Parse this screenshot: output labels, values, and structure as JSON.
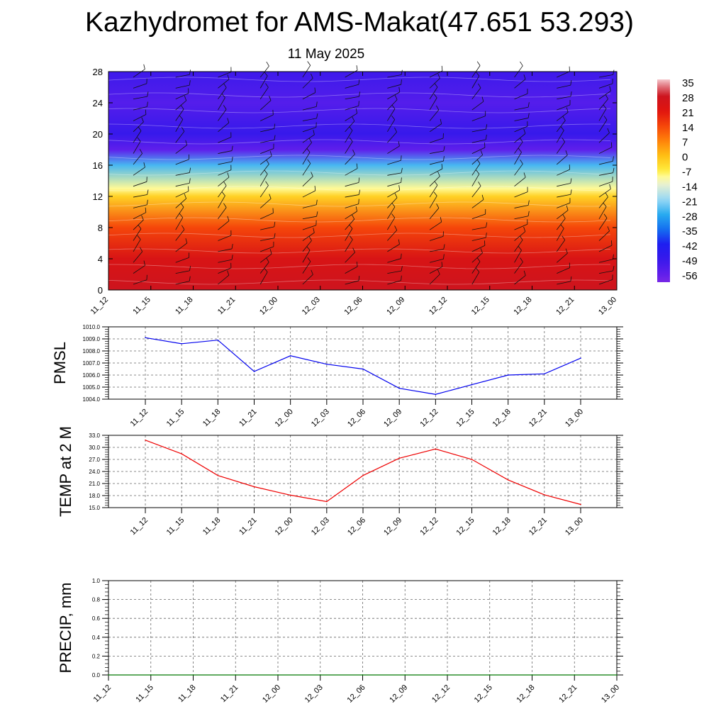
{
  "header": {
    "title": "Kazhydromet for AMS-Makat(47.651 53.293)",
    "date": "11 May 2025"
  },
  "colors": {
    "pmsl_line": "#0000ee",
    "temp_line": "#ee0000",
    "precip_line": "#007700",
    "grid": "#555555"
  },
  "chart_data": [
    {
      "type": "heatmap",
      "name": "cross-section",
      "x_ticks": [
        "11_12",
        "11_15",
        "11_18",
        "11_21",
        "12_00",
        "12_03",
        "12_06",
        "12_09",
        "12_12",
        "12_15",
        "12_18",
        "12_21",
        "13_00"
      ],
      "y_ticks": [
        0,
        4,
        8,
        12,
        16,
        20,
        24,
        28
      ],
      "ylim": [
        0,
        28
      ],
      "legend_position": "right",
      "colorbar_ticks": [
        "35",
        "28",
        "21",
        "14",
        "7",
        "0",
        "-7",
        "-14",
        "-21",
        "-28",
        "-35",
        "-42",
        "-49",
        "-56"
      ],
      "level_profile": [
        {
          "y": 0,
          "value": 28
        },
        {
          "y": 4,
          "value": 24
        },
        {
          "y": 8,
          "value": 14
        },
        {
          "y": 12,
          "value": -3
        },
        {
          "y": 13,
          "value": -10
        },
        {
          "y": 16,
          "value": -26
        },
        {
          "y": 18,
          "value": -56
        },
        {
          "y": 20,
          "value": -49
        },
        {
          "y": 24,
          "value": -54
        },
        {
          "y": 28,
          "value": -50
        }
      ],
      "wind_barbs": true
    },
    {
      "type": "line",
      "ylabel": "PMSL",
      "ylim": [
        1004.0,
        1010.0
      ],
      "y_ticks": [
        "1004.0",
        "1005.0",
        "1006.0",
        "1007.0",
        "1008.0",
        "1009.0",
        "1010.0"
      ],
      "categories": [
        "11_12",
        "11_15",
        "11_18",
        "11_21",
        "12_00",
        "12_03",
        "12_06",
        "12_09",
        "12_12",
        "12_15",
        "12_18",
        "12_21",
        "13_00"
      ],
      "values": [
        1009.1,
        1008.6,
        1008.9,
        1006.3,
        1007.6,
        1006.9,
        1006.5,
        1004.9,
        1004.4,
        1005.2,
        1006.0,
        1006.1,
        1007.4
      ],
      "grid": true
    },
    {
      "type": "line",
      "ylabel": "TEMP at 2 M",
      "ylim": [
        15.0,
        33.0
      ],
      "y_ticks": [
        "15.0",
        "18.0",
        "21.0",
        "24.0",
        "27.0",
        "30.0",
        "33.0"
      ],
      "categories": [
        "11_12",
        "11_15",
        "11_18",
        "11_21",
        "12_00",
        "12_03",
        "12_06",
        "12_09",
        "12_12",
        "12_15",
        "12_18",
        "12_21",
        "13_00"
      ],
      "values": [
        31.8,
        28.4,
        23.0,
        20.2,
        18.1,
        16.5,
        23.0,
        27.3,
        29.6,
        27.0,
        21.9,
        18.2,
        15.8
      ],
      "grid": true
    },
    {
      "type": "line",
      "ylabel": "PRECIP, mm",
      "ylim": [
        0.0,
        1.0
      ],
      "y_ticks": [
        "0.0",
        "0.2",
        "0.4",
        "0.6",
        "0.8",
        "1.0"
      ],
      "categories": [
        "11_12",
        "11_15",
        "11_18",
        "11_21",
        "12_00",
        "12_03",
        "12_06",
        "12_09",
        "12_12",
        "12_15",
        "12_18",
        "12_21",
        "13_00"
      ],
      "values": [
        0,
        0,
        0,
        0,
        0,
        0,
        0,
        0,
        0,
        0,
        0,
        0,
        0
      ],
      "grid": true
    }
  ]
}
